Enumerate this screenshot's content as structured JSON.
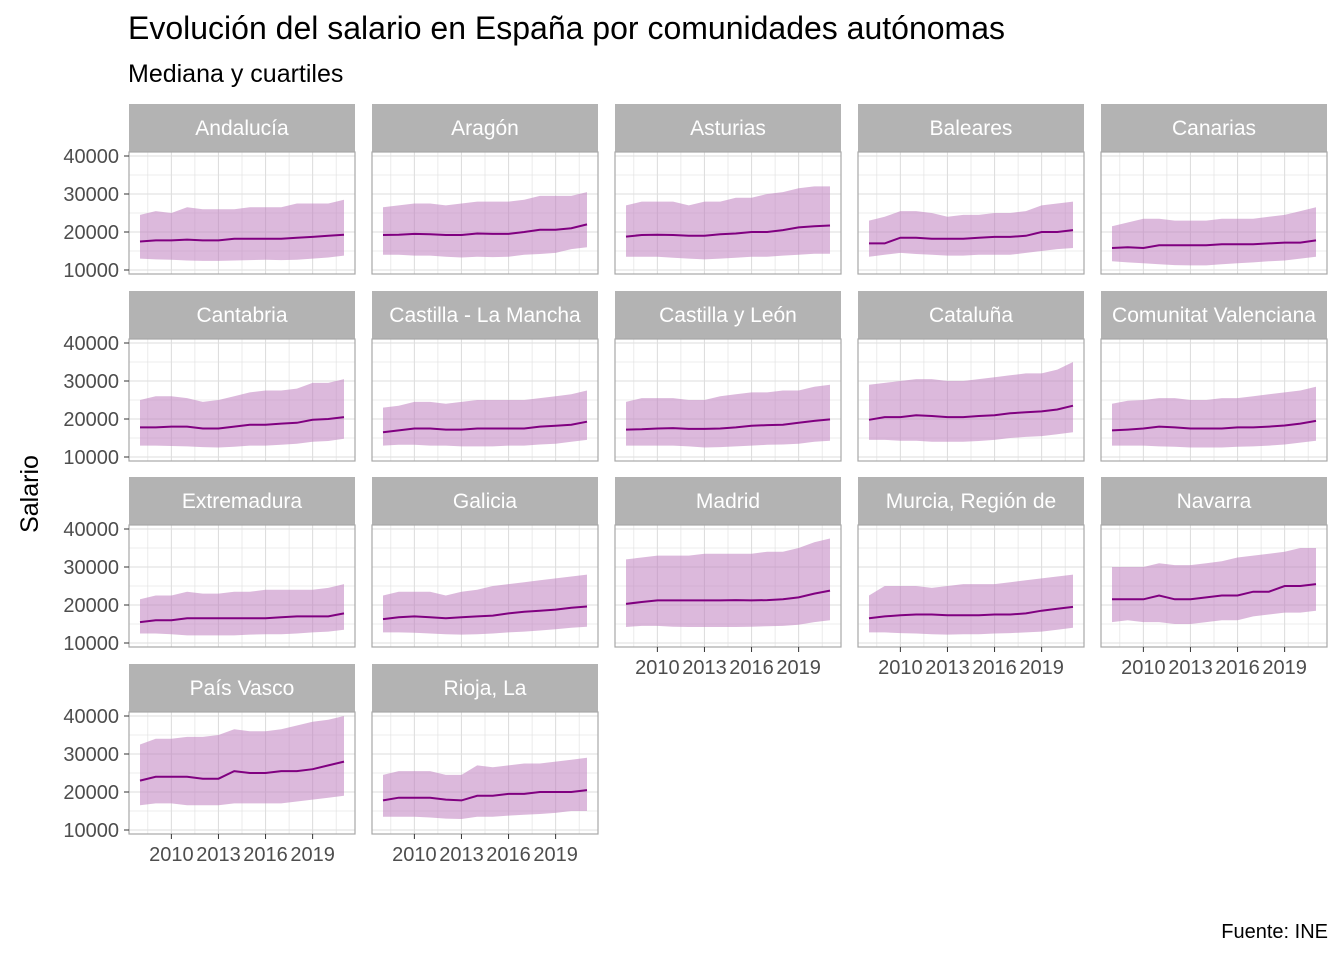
{
  "colors": {
    "line": "#800080",
    "ribbon": "#bf7fbf",
    "strip_bg": "#b3b3b3",
    "grid": "#dedede",
    "panel_border": "#a8a8a8",
    "tick_text": "#4d4d4d"
  },
  "chart_data": {
    "type": "area",
    "title": "Evolución del salario en España por comunidades autónomas",
    "subtitle": "Mediana y cuartiles",
    "ylabel": "Salario",
    "xlabel": "",
    "caption": "Fuente: INE",
    "ylim": [
      10000,
      40000
    ],
    "yticks": [
      "10000",
      "20000",
      "30000",
      "40000"
    ],
    "xticks": [
      "2010",
      "2013",
      "2016",
      "2019"
    ],
    "grid": true,
    "x": [
      2008,
      2009,
      2010,
      2011,
      2012,
      2013,
      2014,
      2015,
      2016,
      2017,
      2018,
      2019,
      2020,
      2021
    ],
    "panels": [
      {
        "name": "Andalucía",
        "median": [
          17500,
          17800,
          17800,
          18000,
          17800,
          17800,
          18200,
          18200,
          18200,
          18200,
          18500,
          18700,
          19000,
          19300
        ],
        "q1": [
          13000,
          12800,
          12700,
          12500,
          12400,
          12400,
          12500,
          12600,
          12700,
          12600,
          12700,
          13000,
          13300,
          13800
        ],
        "q3": [
          24500,
          25500,
          25000,
          26500,
          26000,
          26000,
          26000,
          26500,
          26500,
          26500,
          27500,
          27500,
          27500,
          28500
        ]
      },
      {
        "name": "Aragón",
        "median": [
          19200,
          19300,
          19500,
          19400,
          19200,
          19200,
          19600,
          19500,
          19500,
          20000,
          20600,
          20600,
          21000,
          22000
        ],
        "q1": [
          14000,
          14000,
          13800,
          13800,
          13500,
          13300,
          13500,
          13400,
          13500,
          14000,
          14200,
          14500,
          15500,
          16000
        ],
        "q3": [
          26500,
          27000,
          27500,
          27500,
          27000,
          27500,
          28000,
          28000,
          28000,
          28500,
          29500,
          29500,
          29500,
          30500
        ]
      },
      {
        "name": "Asturias",
        "median": [
          18800,
          19200,
          19300,
          19200,
          19000,
          19000,
          19400,
          19600,
          20000,
          20000,
          20500,
          21200,
          21500,
          21700
        ],
        "q1": [
          13500,
          13500,
          13500,
          13200,
          13000,
          12800,
          13000,
          13200,
          13500,
          13500,
          13800,
          14000,
          14300,
          14300
        ],
        "q3": [
          27000,
          28000,
          28000,
          28000,
          27000,
          28000,
          28000,
          29000,
          29000,
          30000,
          30500,
          31500,
          32000,
          32000
        ]
      },
      {
        "name": "Baleares",
        "median": [
          17000,
          17000,
          18500,
          18500,
          18200,
          18200,
          18200,
          18500,
          18700,
          18700,
          19000,
          20000,
          20000,
          20500
        ],
        "q1": [
          13500,
          14000,
          14500,
          14200,
          14000,
          13800,
          13800,
          14000,
          14000,
          14000,
          14500,
          15000,
          15500,
          15800
        ],
        "q3": [
          23000,
          24000,
          25500,
          25500,
          25000,
          24000,
          24500,
          24500,
          25000,
          25000,
          25500,
          27000,
          27500,
          28000
        ]
      },
      {
        "name": "Canarias",
        "median": [
          15800,
          16000,
          15800,
          16500,
          16500,
          16500,
          16500,
          16800,
          16800,
          16800,
          17000,
          17200,
          17200,
          17800
        ],
        "q1": [
          12300,
          12000,
          11800,
          11500,
          11300,
          11200,
          11200,
          11500,
          11800,
          12000,
          12300,
          12500,
          13000,
          13500
        ],
        "q3": [
          21500,
          22500,
          23500,
          23500,
          23000,
          23000,
          23000,
          23500,
          23500,
          23500,
          24000,
          24500,
          25500,
          26500
        ]
      },
      {
        "name": "Cantabria",
        "median": [
          17800,
          17800,
          18000,
          18000,
          17500,
          17500,
          18000,
          18500,
          18500,
          18800,
          19000,
          19800,
          20000,
          20500
        ],
        "q1": [
          13000,
          13000,
          12900,
          12800,
          12600,
          12500,
          12700,
          13000,
          13000,
          13200,
          13500,
          14000,
          14200,
          14800
        ],
        "q3": [
          25000,
          26000,
          26000,
          25500,
          24500,
          25000,
          26000,
          27000,
          27500,
          27500,
          28000,
          29500,
          29500,
          30500
        ]
      },
      {
        "name": "Castilla - La Mancha",
        "median": [
          16500,
          17000,
          17500,
          17500,
          17200,
          17200,
          17500,
          17500,
          17500,
          17500,
          18000,
          18200,
          18500,
          19300
        ],
        "q1": [
          13000,
          13200,
          13200,
          13000,
          13000,
          12800,
          12800,
          12800,
          13000,
          13000,
          13300,
          13500,
          14000,
          14500
        ],
        "q3": [
          23000,
          23500,
          24500,
          24500,
          24000,
          24500,
          25000,
          25000,
          25000,
          25000,
          25500,
          26000,
          26500,
          27500
        ]
      },
      {
        "name": "Castilla y León",
        "median": [
          17200,
          17300,
          17500,
          17600,
          17400,
          17400,
          17500,
          17800,
          18200,
          18400,
          18500,
          19000,
          19500,
          19900
        ],
        "q1": [
          13000,
          13000,
          13000,
          13000,
          12800,
          12500,
          12600,
          12800,
          13000,
          13200,
          13300,
          13500,
          14000,
          14300
        ],
        "q3": [
          24500,
          25500,
          25500,
          25500,
          25000,
          25000,
          26000,
          26500,
          27000,
          27000,
          27500,
          27500,
          28500,
          29000
        ]
      },
      {
        "name": "Cataluña",
        "median": [
          19800,
          20500,
          20500,
          21000,
          20800,
          20500,
          20500,
          20800,
          21000,
          21500,
          21800,
          22000,
          22500,
          23500
        ],
        "q1": [
          14500,
          14500,
          14300,
          14300,
          14000,
          14000,
          14000,
          14200,
          14500,
          15000,
          15300,
          15500,
          16000,
          16500
        ],
        "q3": [
          29000,
          29500,
          30000,
          30500,
          30500,
          30000,
          30000,
          30500,
          31000,
          31500,
          32000,
          32000,
          33000,
          35000
        ]
      },
      {
        "name": "Comunitat Valenciana",
        "median": [
          17000,
          17200,
          17500,
          18000,
          17800,
          17500,
          17500,
          17500,
          17800,
          17800,
          18000,
          18300,
          18800,
          19500
        ],
        "q1": [
          13000,
          13000,
          13000,
          12800,
          12700,
          12500,
          12500,
          12500,
          12700,
          12800,
          13000,
          13300,
          13800,
          14300
        ],
        "q3": [
          24000,
          24800,
          25000,
          25500,
          25500,
          25000,
          25000,
          25500,
          25500,
          26000,
          26500,
          27000,
          27500,
          28500
        ]
      },
      {
        "name": "Extremadura",
        "median": [
          15500,
          16000,
          16000,
          16500,
          16500,
          16500,
          16500,
          16500,
          16500,
          16800,
          17000,
          17000,
          17000,
          17800
        ],
        "q1": [
          12500,
          12500,
          12300,
          12000,
          12000,
          12000,
          12000,
          12200,
          12300,
          12300,
          12500,
          12800,
          13000,
          13500
        ],
        "q3": [
          21500,
          22500,
          22500,
          23500,
          23000,
          23000,
          23500,
          23500,
          24000,
          24000,
          24000,
          24000,
          24500,
          25500
        ]
      },
      {
        "name": "Galicia",
        "median": [
          16300,
          16800,
          17000,
          16800,
          16500,
          16800,
          17000,
          17200,
          17800,
          18200,
          18500,
          18800,
          19300,
          19600
        ],
        "q1": [
          12800,
          12800,
          12700,
          12500,
          12300,
          12200,
          12300,
          12500,
          12800,
          13000,
          13300,
          13600,
          14000,
          14300
        ],
        "q3": [
          22500,
          23500,
          23500,
          23500,
          22500,
          23500,
          24000,
          25000,
          25500,
          26000,
          26500,
          27000,
          27500,
          28000
        ]
      },
      {
        "name": "Madrid",
        "median": [
          20300,
          20800,
          21200,
          21200,
          21200,
          21200,
          21200,
          21300,
          21200,
          21300,
          21500,
          22000,
          23000,
          23800
        ],
        "q1": [
          14200,
          14500,
          14500,
          14300,
          14200,
          14200,
          14200,
          14200,
          14300,
          14400,
          14500,
          14800,
          15500,
          16000
        ],
        "q3": [
          32000,
          32500,
          33000,
          33000,
          33000,
          33500,
          33500,
          33500,
          33500,
          34000,
          34000,
          35000,
          36500,
          37500
        ]
      },
      {
        "name": "Murcia, Región de",
        "median": [
          16500,
          17000,
          17300,
          17500,
          17500,
          17300,
          17300,
          17300,
          17500,
          17500,
          17800,
          18500,
          19000,
          19500
        ],
        "q1": [
          12800,
          12800,
          12600,
          12500,
          12300,
          12200,
          12300,
          12300,
          12500,
          12600,
          12800,
          13000,
          13500,
          14000
        ],
        "q3": [
          22500,
          25000,
          25000,
          25000,
          24500,
          25000,
          25500,
          25500,
          25500,
          26000,
          26500,
          27000,
          27500,
          28000
        ]
      },
      {
        "name": "Navarra",
        "median": [
          21500,
          21500,
          21500,
          22500,
          21500,
          21500,
          22000,
          22500,
          22500,
          23500,
          23500,
          25000,
          25000,
          25500
        ],
        "q1": [
          15500,
          16000,
          15500,
          15500,
          15000,
          15000,
          15500,
          16000,
          16000,
          17000,
          17500,
          18000,
          18000,
          18500
        ],
        "q3": [
          30000,
          30000,
          30000,
          31000,
          30500,
          30500,
          31000,
          31500,
          32500,
          33000,
          33500,
          34000,
          35000,
          35000
        ]
      },
      {
        "name": "País Vasco",
        "median": [
          23000,
          24000,
          24000,
          24000,
          23500,
          23500,
          25500,
          25000,
          25000,
          25500,
          25500,
          26000,
          27000,
          28000
        ],
        "q1": [
          16500,
          17000,
          17000,
          16500,
          16500,
          16500,
          17000,
          17000,
          17000,
          17000,
          17500,
          18000,
          18500,
          19000
        ],
        "q3": [
          32500,
          34000,
          34000,
          34500,
          34500,
          35000,
          36500,
          36000,
          36000,
          36500,
          37500,
          38500,
          39000,
          40000
        ]
      },
      {
        "name": "Rioja, La",
        "median": [
          17800,
          18500,
          18500,
          18500,
          18000,
          17800,
          19000,
          19000,
          19500,
          19500,
          20000,
          20000,
          20000,
          20500
        ],
        "q1": [
          13500,
          13500,
          13500,
          13300,
          13000,
          12900,
          13500,
          13500,
          13800,
          14000,
          14200,
          14500,
          15000,
          15000
        ],
        "q3": [
          24500,
          25500,
          25500,
          25500,
          24500,
          24500,
          27000,
          26500,
          27000,
          27500,
          27500,
          28000,
          28500,
          29000
        ]
      }
    ]
  }
}
